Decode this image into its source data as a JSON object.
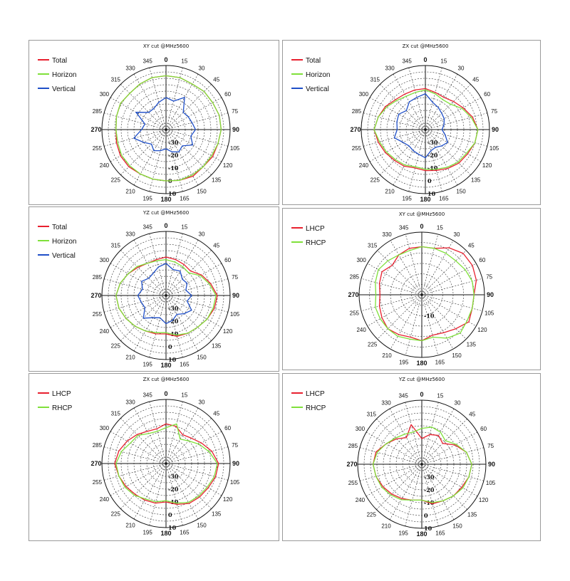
{
  "chart_data": [
    {
      "type": "polar_line",
      "title": "XY cut @MHz5600",
      "angle_ticks": [
        "0",
        "15",
        "30",
        "45",
        "60",
        "75",
        "90",
        "105",
        "120",
        "135",
        "150",
        "165",
        "180",
        "195",
        "210",
        "225",
        "240",
        "255",
        "270",
        "285",
        "300",
        "315",
        "330",
        "345"
      ],
      "radial_ticks": [
        "-30",
        "-20",
        "-10",
        "0",
        "10"
      ],
      "rlim": [
        -40,
        10
      ],
      "series": [
        {
          "name": "Total",
          "color": "#e8202f",
          "values": [
            2,
            2,
            1,
            2,
            2,
            3,
            3,
            2,
            2,
            1,
            2,
            1,
            0,
            0,
            0,
            1,
            1,
            0,
            -1,
            0,
            1,
            0,
            1,
            2
          ]
        },
        {
          "name": "Horizon",
          "color": "#7fe03a",
          "values": [
            2,
            2,
            1,
            2,
            2,
            3,
            3,
            2,
            1,
            1,
            1,
            1,
            0,
            0,
            0,
            0,
            0,
            -1,
            -1,
            0,
            1,
            0,
            1,
            2
          ]
        },
        {
          "name": "Vertical",
          "color": "#1f4fc8",
          "values": [
            -15,
            -17,
            -11,
            -21,
            -20,
            -19,
            -17,
            -20,
            -16,
            -22,
            -20,
            -22,
            -25,
            -23,
            -21,
            -24,
            -20,
            -14,
            -21,
            -23,
            -13,
            -21,
            -21,
            -18
          ]
        }
      ]
    },
    {
      "type": "polar_line",
      "title": "ZX cut @MHz5600",
      "angle_ticks": [
        "0",
        "15",
        "30",
        "45",
        "60",
        "75",
        "90",
        "105",
        "120",
        "135",
        "150",
        "165",
        "180",
        "195",
        "210",
        "225",
        "240",
        "255",
        "270",
        "285",
        "300",
        "315",
        "330",
        "345"
      ],
      "radial_ticks": [
        "-30",
        "-20",
        "-10",
        "0",
        "10"
      ],
      "rlim": [
        -40,
        10
      ],
      "series": [
        {
          "name": "Total",
          "color": "#e8202f",
          "values": [
            -8,
            -10,
            -11,
            -9,
            -6,
            -2,
            1,
            0,
            -2,
            -3,
            -5,
            -7,
            -8,
            -9,
            -7,
            -6,
            -4,
            -2,
            0,
            -2,
            -4,
            -7,
            -8,
            -8
          ]
        },
        {
          "name": "Horizon",
          "color": "#7fe03a",
          "values": [
            -9,
            -11,
            -13,
            -12,
            -7,
            -3,
            1,
            0,
            -3,
            -4,
            -6,
            -8,
            -9,
            -10,
            -8,
            -7,
            -5,
            -3,
            0,
            -2,
            -5,
            -8,
            -10,
            -10
          ]
        },
        {
          "name": "Vertical",
          "color": "#1f4fc8",
          "values": [
            -12,
            -18,
            -20,
            -22,
            -23,
            -25,
            -27,
            -24,
            -20,
            -22,
            -24,
            -23,
            -18,
            -20,
            -21,
            -22,
            -20,
            -15,
            -18,
            -17,
            -16,
            -19,
            -15,
            -14
          ]
        }
      ]
    },
    {
      "type": "polar_line",
      "title": "YZ cut @MHz5600",
      "angle_ticks": [
        "0",
        "15",
        "30",
        "45",
        "60",
        "75",
        "90",
        "105",
        "120",
        "135",
        "150",
        "165",
        "180",
        "195",
        "210",
        "225",
        "240",
        "255",
        "270",
        "285",
        "300",
        "315",
        "330",
        "345"
      ],
      "radial_ticks": [
        "-30",
        "-20",
        "-10",
        "0",
        "10"
      ],
      "rlim": [
        -40,
        10
      ],
      "series": [
        {
          "name": "Total",
          "color": "#e8202f",
          "values": [
            -10,
            -11,
            -12,
            -13,
            -8,
            -4,
            0,
            -1,
            -3,
            -5,
            -6,
            -7,
            -10,
            -9,
            -8,
            -6,
            -4,
            -2,
            -1,
            -3,
            -6,
            -9,
            -11,
            -11
          ]
        },
        {
          "name": "Horizon",
          "color": "#7fe03a",
          "values": [
            -12,
            -13,
            -14,
            -15,
            -9,
            -5,
            -1,
            -2,
            -3,
            -5,
            -6,
            -8,
            -11,
            -10,
            -8,
            -6,
            -4,
            -2,
            -1,
            -3,
            -6,
            -8,
            -11,
            -12
          ]
        },
        {
          "name": "Vertical",
          "color": "#1f4fc8",
          "values": [
            -15,
            -19,
            -18,
            -22,
            -21,
            -24,
            -20,
            -23,
            -17,
            -20,
            -23,
            -20,
            -18,
            -22,
            -20,
            -15,
            -21,
            -20,
            -18,
            -21,
            -18,
            -21,
            -20,
            -17
          ]
        }
      ]
    },
    {
      "type": "polar_line",
      "title": "XY cut @MHz5600",
      "angle_ticks": [
        "0",
        "15",
        "30",
        "45",
        "60",
        "75",
        "90",
        "105",
        "120",
        "135",
        "150",
        "165",
        "180",
        "195",
        "210",
        "225",
        "240",
        "255",
        "270",
        "285",
        "300",
        "315",
        "330",
        "345"
      ],
      "radial_ticks": [
        "-10"
      ],
      "rlim": [
        -20,
        10
      ],
      "series": [
        {
          "name": "LHCP",
          "color": "#e8202f",
          "values": [
            3,
            3,
            6,
            8,
            8,
            7,
            5,
            5,
            6,
            3,
            1,
            0,
            2,
            1,
            2,
            3,
            2,
            1,
            0,
            1,
            2,
            0,
            2,
            3
          ]
        },
        {
          "name": "RHCP",
          "color": "#7fe03a",
          "values": [
            3,
            3,
            3,
            3,
            4,
            5,
            5,
            5,
            5,
            6,
            4,
            1,
            2,
            2,
            3,
            3,
            3,
            3,
            2,
            3,
            4,
            3,
            2,
            2
          ]
        }
      ]
    },
    {
      "type": "polar_line",
      "title": "ZX cut @MHz5600",
      "angle_ticks": [
        "0",
        "15",
        "30",
        "45",
        "60",
        "75",
        "90",
        "105",
        "120",
        "135",
        "150",
        "165",
        "180",
        "195",
        "210",
        "225",
        "240",
        "255",
        "270",
        "285",
        "300",
        "315",
        "330",
        "345"
      ],
      "radial_ticks": [
        "-30",
        "-20",
        "-10",
        "0",
        "10"
      ],
      "rlim": [
        -40,
        10
      ],
      "series": [
        {
          "name": "LHCP",
          "color": "#e8202f",
          "values": [
            -9,
            -10,
            -14,
            -12,
            -8,
            -3,
            1,
            0,
            -2,
            -3,
            -4,
            -7,
            -10,
            -8,
            -7,
            -6,
            -4,
            -2,
            0,
            -2,
            -5,
            -8,
            -11,
            -12
          ]
        },
        {
          "name": "RHCP",
          "color": "#7fe03a",
          "values": [
            -12,
            -8,
            -18,
            -15,
            -10,
            -5,
            0,
            -1,
            -3,
            -4,
            -5,
            -8,
            -11,
            -9,
            -8,
            -5,
            -3,
            -2,
            -1,
            -4,
            -8,
            -9,
            -13,
            -14
          ]
        }
      ]
    },
    {
      "type": "polar_line",
      "title": "YZ cut @MHz5600",
      "angle_ticks": [
        "0",
        "15",
        "30",
        "45",
        "60",
        "75",
        "90",
        "105",
        "120",
        "135",
        "150",
        "165",
        "180",
        "195",
        "210",
        "225",
        "240",
        "255",
        "270",
        "285",
        "300",
        "315",
        "330",
        "345"
      ],
      "radial_ticks": [
        "-30",
        "-20",
        "-10",
        "0",
        "10"
      ],
      "rlim": [
        -40,
        10
      ],
      "series": [
        {
          "name": "LHCP",
          "color": "#e8202f",
          "values": [
            -20,
            -16,
            -14,
            -17,
            -10,
            -4,
            -1,
            -2,
            -4,
            -5,
            -7,
            -8,
            -12,
            -11,
            -9,
            -7,
            -5,
            -3,
            -2,
            -3,
            -8,
            -12,
            -16,
            -8
          ]
        },
        {
          "name": "RHCP",
          "color": "#7fe03a",
          "values": [
            -12,
            -10,
            -11,
            -14,
            -9,
            -4,
            -1,
            -2,
            -3,
            -5,
            -7,
            -9,
            -12,
            -11,
            -8,
            -6,
            -4,
            -3,
            -2,
            -4,
            -8,
            -11,
            -13,
            -14
          ]
        }
      ]
    }
  ]
}
